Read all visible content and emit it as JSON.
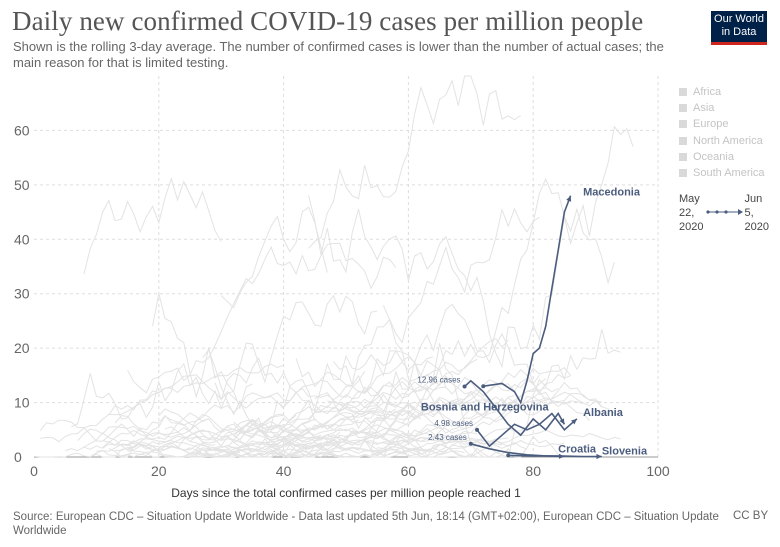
{
  "header": {
    "title": "Daily new confirmed COVID-19 cases per million people",
    "subtitle": "Shown is the rolling 3-day average. The number of confirmed cases is lower than the number of actual cases; the main reason for that is limited testing.",
    "logo_line1": "Our World",
    "logo_line2": "in Data"
  },
  "legend": {
    "items": [
      "Africa",
      "Asia",
      "Europe",
      "North America",
      "Oceania",
      "South America"
    ]
  },
  "timeline": {
    "start_top": "May",
    "start_mid": "22,",
    "start_bottom": "2020",
    "end_top": "Jun",
    "end_mid": "5,",
    "end_bottom": "2020"
  },
  "footer": {
    "source": "Source: European CDC – Situation Update Worldwide - Data last updated 5th Jun, 18:14 (GMT+02:00), European CDC – Situation Update Worldwide",
    "license": "CC BY"
  },
  "colors": {
    "highlight": "#4b5d7e",
    "background_series": "#e3e3e3",
    "grid": "#dddddd"
  },
  "chart_data": {
    "type": "line",
    "xlabel": "Days since the total confirmed cases per million people reached 1",
    "ylabel": "",
    "xlim": [
      0,
      100
    ],
    "ylim": [
      0,
      70
    ],
    "x_ticks": [
      0,
      20,
      40,
      60,
      80,
      100
    ],
    "y_ticks": [
      0,
      10,
      20,
      30,
      40,
      50,
      60
    ],
    "grid": true,
    "legend_position": "right",
    "series": [
      {
        "name": "Macedonia",
        "label": "Macedonia",
        "x": [
          72,
          75,
          77,
          78,
          79,
          80,
          81,
          82,
          83,
          84,
          85,
          86
        ],
        "y": [
          13,
          13.5,
          12,
          10,
          14,
          19,
          20,
          24,
          31,
          38,
          45,
          48
        ]
      },
      {
        "name": "Albania",
        "label": "Albania",
        "x": [
          71,
          73,
          75,
          77,
          79,
          81,
          83,
          85,
          86,
          87
        ],
        "y": [
          4.98,
          2,
          4,
          6,
          5,
          6,
          8,
          5,
          6,
          7
        ]
      },
      {
        "name": "Bosnia and Herzegovina",
        "label": "Bosnia and Herzegovina",
        "x": [
          69,
          70,
          72,
          74,
          76,
          78,
          80,
          82,
          84,
          85
        ],
        "y": [
          12.96,
          14,
          12,
          9,
          6,
          4,
          7,
          5,
          8,
          6
        ]
      },
      {
        "name": "Croatia",
        "label": "Croatia",
        "x": [
          70,
          73,
          76,
          79,
          82,
          85
        ],
        "y": [
          2.43,
          1.5,
          0.8,
          0.4,
          0.2,
          0.1
        ]
      },
      {
        "name": "Slovenia",
        "label": "Slovenia",
        "x": [
          76,
          80,
          84,
          88,
          91
        ],
        "y": [
          0.3,
          0.2,
          0.2,
          0.1,
          0.1
        ]
      }
    ],
    "annotations": [
      {
        "text": "12.96 cases",
        "x": 69,
        "y": 12.96
      },
      {
        "text": "4.98 cases",
        "x": 71,
        "y": 4.98
      },
      {
        "text": "2.43 cases",
        "x": 70,
        "y": 2.43
      }
    ]
  }
}
